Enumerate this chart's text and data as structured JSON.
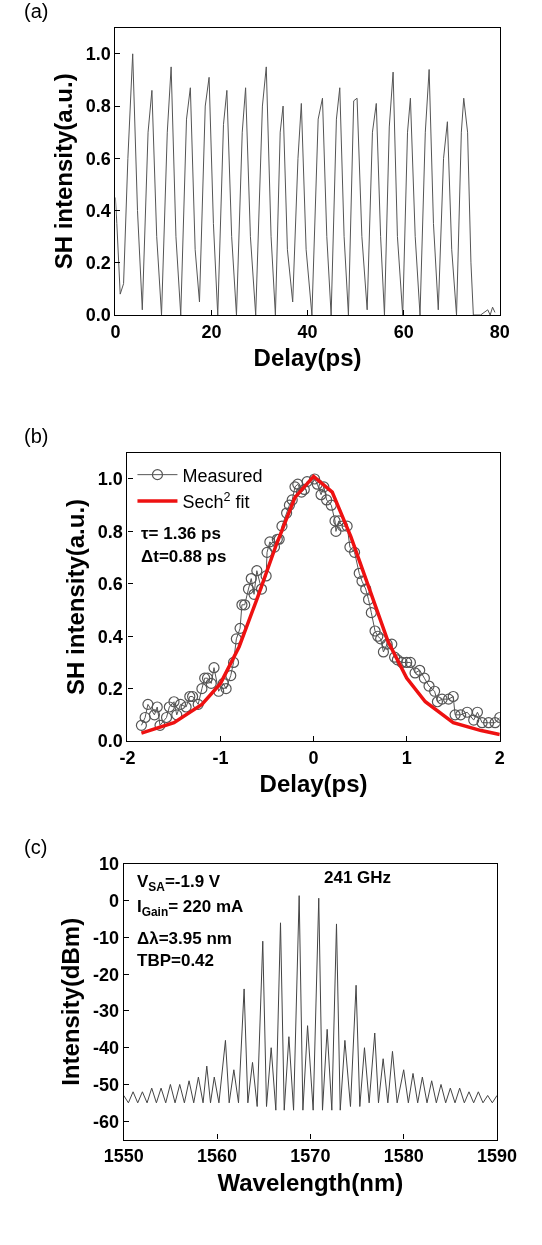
{
  "chart_data": [
    {
      "type": "line",
      "title": "(a)",
      "xlabel": "Delay(ps)",
      "ylabel": "SH intensity(a.u.)",
      "xlim": [
        0,
        80
      ],
      "ylim": [
        0,
        1.1
      ],
      "xticks": [
        0,
        20,
        40,
        60,
        80
      ],
      "yticks": [
        {
          "value": 0,
          "label": "0.0"
        },
        {
          "value": 0.2,
          "label": "0.2"
        },
        {
          "value": 0.4,
          "label": "0.4"
        },
        {
          "value": 0.6,
          "label": "0.6"
        },
        {
          "value": 0.8,
          "label": "0.8"
        },
        {
          "value": 1,
          "label": "1.0"
        }
      ],
      "marker": "none",
      "line_style": "solid",
      "series": [
        {
          "color": "#555555",
          "x": [
            0,
            0.3,
            1,
            1.7,
            2.6,
            3.6,
            4.6,
            5.6,
            6.8,
            7.6,
            8.6,
            9.6,
            10.8,
            11.6,
            12.6,
            13.6,
            14.8,
            15.6,
            16.6,
            17.5,
            18.7,
            19.5,
            20.4,
            21.3,
            22.5,
            23.2,
            24.2,
            25.2,
            26.4,
            27.1,
            28.1,
            29.2,
            30.6,
            31.4,
            32.4,
            33.3,
            34.3,
            34.9,
            35.8,
            36.9,
            38.0,
            38.7,
            39.7,
            40.9,
            42.2,
            43.1,
            44.0,
            44.9,
            46.0,
            46.7,
            47.6,
            48.5,
            49.6,
            50.3,
            51.3,
            52.4,
            53.5,
            54.3,
            55.2,
            56.0,
            57.0,
            57.8,
            58.7,
            59.8,
            60.8,
            61.4,
            62.4,
            63.4,
            64.5,
            65.3,
            66.2,
            67.2,
            68.3,
            69.1,
            70.0,
            71.0,
            72.0,
            72.5,
            73.3,
            74.0,
            74.5,
            76,
            77.5,
            78,
            78.5,
            79
          ],
          "values": [
            0.45,
            0.35,
            0.08,
            0.12,
            0.6,
            1.0,
            0.4,
            0.02,
            0.7,
            0.86,
            0.3,
            0.0,
            0.7,
            0.95,
            0.3,
            0.0,
            0.75,
            0.87,
            0.25,
            0.05,
            0.8,
            0.91,
            0.35,
            0.0,
            0.73,
            0.86,
            0.3,
            0.0,
            0.7,
            0.87,
            0.3,
            0.0,
            0.8,
            0.95,
            0.3,
            0.0,
            0.7,
            0.8,
            0.25,
            0.05,
            0.6,
            0.81,
            0.25,
            0.0,
            0.75,
            0.83,
            0.3,
            0.0,
            0.75,
            0.87,
            0.3,
            0.0,
            0.82,
            0.83,
            0.3,
            0.02,
            0.7,
            0.81,
            0.3,
            0.0,
            0.72,
            0.93,
            0.3,
            0.0,
            0.7,
            0.83,
            0.3,
            0.0,
            0.7,
            0.94,
            0.35,
            0.02,
            0.6,
            0.74,
            0.25,
            0.0,
            0.7,
            0.83,
            0.7,
            0.2,
            0.0,
            0.0,
            0.02,
            0.0,
            0.03,
            0.01
          ]
        }
      ]
    },
    {
      "type": "line",
      "title": "(b)",
      "xlabel": "Delay(ps)",
      "ylabel": "SH intensity(a.u.)",
      "xlim": [
        -2,
        2
      ],
      "ylim": [
        0,
        1.1
      ],
      "xticks": [
        -2,
        -1,
        0,
        1,
        2
      ],
      "yticks": [
        {
          "value": 0,
          "label": "0.0"
        },
        {
          "value": 0.2,
          "label": "0.2"
        },
        {
          "value": 0.4,
          "label": "0.4"
        },
        {
          "value": 0.6,
          "label": "0.6"
        },
        {
          "value": 0.8,
          "label": "0.8"
        },
        {
          "value": 1,
          "label": "1.0"
        }
      ],
      "legend": "top left",
      "annotations": [
        "τ= 1.36 ps",
        "Δt=0.88 ps"
      ],
      "series": [
        {
          "name": "Measured",
          "color": "#555555",
          "marker": "circle",
          "line_style": "solid",
          "x": [
            -1.85,
            -1.81,
            -1.78,
            -1.71,
            -1.68,
            -1.65,
            -1.58,
            -1.55,
            -1.5,
            -1.47,
            -1.43,
            -1.37,
            -1.33,
            -1.3,
            -1.24,
            -1.2,
            -1.17,
            -1.14,
            -1.1,
            -1.07,
            -1.02,
            -0.97,
            -0.94,
            -0.89,
            -0.86,
            -0.83,
            -0.79,
            -0.77,
            -0.74,
            -0.7,
            -0.67,
            -0.64,
            -0.61,
            -0.56,
            -0.51,
            -0.5,
            -0.47,
            -0.42,
            -0.39,
            -0.37,
            -0.34,
            -0.29,
            -0.26,
            -0.23,
            -0.2,
            -0.17,
            -0.13,
            -0.1,
            -0.07,
            0.01,
            0.04,
            0.08,
            0.11,
            0.14,
            0.19,
            0.23,
            0.24,
            0.27,
            0.31,
            0.36,
            0.39,
            0.44,
            0.49,
            0.52,
            0.56,
            0.59,
            0.62,
            0.66,
            0.69,
            0.72,
            0.75,
            0.79,
            0.84,
            0.87,
            0.9,
            0.95,
            1.0,
            1.04,
            1.09,
            1.14,
            1.19,
            1.24,
            1.3,
            1.33,
            1.38,
            1.45,
            1.5,
            1.52,
            1.58,
            1.65,
            1.72,
            1.76,
            1.81,
            1.88,
            1.95,
            2.0
          ],
          "values": [
            0.06,
            0.09,
            0.14,
            0.1,
            0.13,
            0.06,
            0.09,
            0.13,
            0.15,
            0.1,
            0.14,
            0.13,
            0.17,
            0.17,
            0.14,
            0.2,
            0.24,
            0.24,
            0.22,
            0.28,
            0.19,
            0.22,
            0.2,
            0.25,
            0.3,
            0.39,
            0.43,
            0.52,
            0.52,
            0.58,
            0.62,
            0.56,
            0.65,
            0.58,
            0.63,
            0.72,
            0.76,
            0.74,
            0.77,
            0.77,
            0.82,
            0.87,
            0.9,
            0.92,
            0.97,
            0.98,
            0.95,
            0.96,
            0.99,
            1.0,
            0.98,
            0.94,
            0.97,
            0.92,
            0.9,
            0.84,
            0.8,
            0.84,
            0.82,
            0.82,
            0.74,
            0.72,
            0.64,
            0.61,
            0.58,
            0.54,
            0.49,
            0.42,
            0.4,
            0.39,
            0.34,
            0.37,
            0.37,
            0.32,
            0.31,
            0.3,
            0.3,
            0.3,
            0.26,
            0.27,
            0.24,
            0.21,
            0.19,
            0.15,
            0.16,
            0.16,
            0.17,
            0.1,
            0.1,
            0.11,
            0.08,
            0.11,
            0.07,
            0.07,
            0.07,
            0.09
          ]
        },
        {
          "name": "Sech$^{2}$ fit",
          "color": "#ee1111",
          "marker": "none",
          "line_style": "solid",
          "x": [
            -1.85,
            -1.5,
            -1.2,
            -1.0,
            -0.8,
            -0.6,
            -0.4,
            -0.2,
            0,
            0.2,
            0.4,
            0.6,
            0.8,
            1.0,
            1.2,
            1.5,
            1.8,
            2.0
          ],
          "values": [
            0.03,
            0.07,
            0.14,
            0.22,
            0.36,
            0.55,
            0.75,
            0.93,
            1.01,
            0.95,
            0.78,
            0.58,
            0.38,
            0.24,
            0.15,
            0.07,
            0.04,
            0.025
          ]
        }
      ]
    },
    {
      "type": "line",
      "title": "(c)",
      "xlabel": "Wavelength(nm)",
      "ylabel": "Intensity(dBm)",
      "xlim": [
        1550,
        1590
      ],
      "ylim": [
        -65,
        10
      ],
      "xticks": [
        1550,
        1560,
        1570,
        1580,
        1590
      ],
      "yticks": [
        -60,
        -50,
        -40,
        -30,
        -20,
        -10,
        0,
        10
      ],
      "marker": "none",
      "line_style": "solid",
      "annotations": [
        "V$_{SA}$=-1.9 V",
        "I$_{Gain}$= 220 mA",
        "Δλ=3.95 nm",
        "TBP=0.42",
        "241 GHz"
      ],
      "series": [
        {
          "color": "#444444",
          "x": [
            1550,
            1550.5,
            1551,
            1551.5,
            1552,
            1552.5,
            1553,
            1553.5,
            1554,
            1554.5,
            1555,
            1555.5,
            1556,
            1556.5,
            1557,
            1557.5,
            1558,
            1558.5,
            1558.9,
            1559.3,
            1559.7,
            1560.2,
            1560.9,
            1561.3,
            1561.8,
            1562.3,
            1562.9,
            1563.3,
            1563.8,
            1564.3,
            1564.9,
            1565.3,
            1565.8,
            1566.3,
            1566.8,
            1567.2,
            1567.7,
            1568.2,
            1568.8,
            1569.2,
            1569.7,
            1570.3,
            1570.9,
            1571.3,
            1571.8,
            1572.3,
            1572.8,
            1573.2,
            1573.7,
            1574.3,
            1574.9,
            1575.3,
            1575.8,
            1576.3,
            1576.9,
            1577.3,
            1577.8,
            1578.3,
            1578.8,
            1579.3,
            1580,
            1580.5,
            1581,
            1581.5,
            1582,
            1582.5,
            1583,
            1583.5,
            1584,
            1584.5,
            1585,
            1585.5,
            1586,
            1586.5,
            1587,
            1587.5,
            1588,
            1588.5,
            1589,
            1589.5,
            1590
          ],
          "values": [
            -53,
            -55,
            -52,
            -55,
            -52,
            -55,
            -51,
            -55,
            -51,
            -55,
            -50,
            -55,
            -50,
            -55,
            -49,
            -55,
            -48,
            -55,
            -45,
            -55,
            -48,
            -55,
            -38,
            -55,
            -46,
            -55,
            -24,
            -55,
            -44,
            -56,
            -11,
            -56,
            -40,
            -57,
            -6,
            -57,
            -37,
            -57,
            1.4,
            -57,
            -34,
            -57,
            0.7,
            -57,
            -35,
            -57,
            -6.3,
            -57,
            -38,
            -56,
            -23,
            -56,
            -40,
            -55,
            -36,
            -55,
            -43,
            -55,
            -41,
            -55,
            -46,
            -55,
            -47,
            -55,
            -48,
            -55,
            -49,
            -55,
            -50,
            -55,
            -51,
            -55,
            -51,
            -55,
            -52,
            -55,
            -52,
            -55,
            -53,
            -55,
            -53
          ]
        }
      ]
    }
  ]
}
